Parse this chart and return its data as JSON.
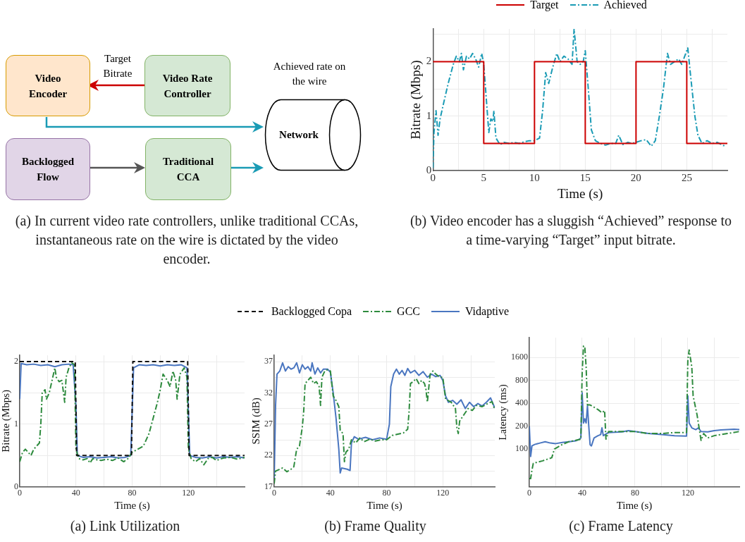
{
  "chart_data": [
    {
      "type": "other",
      "title": "(a) In current video rate controllers, unlike traditional CCAs, instantaneous rate on the wire is dictated by the video encoder.",
      "annotations": [
        "Video Encoder",
        "Video Rate Controller",
        "Backlogged Flow",
        "Traditional CCA",
        "Network",
        "Target Bitrate",
        "Achieved rate on the wire"
      ]
    },
    {
      "type": "line",
      "title": "(b) Video encoder has a sluggish “Achieved” response to a time-varying “Target” input bitrate.",
      "xlabel": "Time (s)",
      "ylabel": "Bitrate (Mbps)",
      "xlim": [
        0,
        29
      ],
      "ylim": [
        0,
        2.6
      ],
      "xticks": [
        0,
        {
          "value": 2.5,
          "label": null
        },
        5,
        {
          "value": 7.5,
          "label": null
        },
        10,
        {
          "value": 12.5,
          "label": null
        },
        15,
        {
          "value": 17.5,
          "label": null
        },
        20,
        {
          "value": 22.5,
          "label": null
        },
        25,
        {
          "value": 27.5,
          "label": null
        }
      ],
      "yticks": [
        0,
        {
          "value": 0.5,
          "label": null
        },
        1,
        {
          "value": 1.5,
          "label": null
        },
        2,
        {
          "value": 2.5,
          "label": null
        }
      ],
      "grid": true,
      "legend": "top",
      "series": [
        {
          "name": "Target",
          "color": "#cc0000",
          "line_style": "solid",
          "x": [
            0,
            5,
            5,
            10,
            10,
            15,
            15,
            20,
            20,
            25,
            25,
            29
          ],
          "values": [
            2,
            2,
            0.5,
            0.5,
            2,
            2,
            0.5,
            0.5,
            2,
            2,
            0.5,
            0.5
          ]
        },
        {
          "name": "Achieved",
          "color": "#1a9bb5",
          "line_style": "dashdot",
          "x": [
            0,
            0.1,
            0.3,
            0.5,
            0.7,
            1.0,
            1.5,
            2.0,
            2.3,
            2.6,
            2.8,
            3.0,
            3.3,
            3.6,
            3.9,
            4.2,
            4.5,
            4.8,
            5.0,
            5.3,
            5.5,
            5.7,
            5.9,
            6.0,
            6.2,
            6.6,
            7,
            7.5,
            8,
            8.5,
            9,
            9.5,
            10,
            10.5,
            10.8,
            11.1,
            11.4,
            11.8,
            12.2,
            12.5,
            12.9,
            13.3,
            13.7,
            13.9,
            14.2,
            14.5,
            14.8,
            15.0,
            15.3,
            15.6,
            16,
            16.5,
            17,
            17.5,
            18,
            18.3,
            18.7,
            19.2,
            19.6,
            20,
            20.5,
            21,
            21.5,
            21.9,
            22.3,
            22.7,
            23.1,
            23.4,
            23.8,
            24.2,
            24.5,
            24.9,
            25.1,
            25.4,
            25.8,
            26.1,
            26.5,
            27,
            27.5,
            28,
            28.5,
            28.8
          ],
          "values": [
            0.05,
            0.7,
            1.1,
            0.65,
            0.95,
            1.2,
            1.6,
            1.95,
            2.1,
            2.0,
            2.15,
            1.85,
            2.1,
            2.05,
            2.15,
            2.05,
            1.9,
            2.15,
            1.95,
            1.2,
            0.7,
            0.95,
            0.9,
            1.1,
            0.6,
            0.48,
            0.52,
            0.5,
            0.52,
            0.5,
            0.53,
            0.55,
            0.55,
            0.6,
            1.1,
            1.8,
            1.6,
            1.9,
            2.15,
            2.0,
            2.1,
            2.05,
            1.95,
            2.6,
            2.0,
            1.95,
            2.0,
            2.2,
            1.5,
            0.75,
            0.55,
            0.5,
            0.47,
            0.5,
            0.5,
            0.65,
            0.48,
            0.52,
            0.5,
            0.52,
            0.55,
            0.57,
            0.45,
            0.55,
            1.0,
            1.5,
            2.15,
            1.95,
            2.0,
            2.05,
            1.95,
            2.15,
            2.25,
            1.7,
            1.0,
            0.65,
            0.5,
            0.55,
            0.5,
            0.52,
            0.47,
            0.45
          ]
        }
      ]
    },
    {
      "type": "line",
      "title": "(a) Link Utilization",
      "xlabel": "Time (s)",
      "ylabel": "Bitrate (Mbps)",
      "xlim": [
        0,
        160
      ],
      "ylim": [
        0,
        2.1
      ],
      "xticks": [
        0,
        {
          "value": 20,
          "label": null
        },
        40,
        {
          "value": 60,
          "label": null
        },
        80,
        {
          "value": 100,
          "label": null
        },
        120,
        {
          "value": 140,
          "label": null
        }
      ],
      "yticks": [
        0,
        {
          "value": 0.5,
          "label": null
        },
        1,
        {
          "value": 1.5,
          "label": null
        },
        2
      ],
      "grid": true,
      "legend": "top",
      "series": [
        {
          "name": "Backlogged Copa",
          "color": "#111111",
          "line_style": "dashed",
          "x": [
            0,
            39.5,
            40.5,
            79.5,
            80.5,
            119.5,
            120.5,
            160
          ],
          "values": [
            2,
            2,
            0.5,
            0.5,
            2,
            2,
            0.5,
            0.5
          ]
        },
        {
          "name": "GCC",
          "color": "#2e8b3e",
          "line_style": "dashdot",
          "x": [
            0,
            2,
            4,
            6,
            8,
            10,
            12,
            14,
            15,
            16,
            18,
            19,
            21,
            23,
            25,
            26,
            28,
            30,
            32,
            33,
            35,
            37,
            39,
            40,
            42,
            45,
            48,
            50,
            52,
            55,
            58,
            62,
            66,
            70,
            74,
            77,
            80,
            84,
            88,
            92,
            95,
            98,
            100,
            102,
            105,
            107,
            109,
            111,
            112,
            114,
            117,
            119,
            120,
            122,
            125,
            128,
            131,
            134,
            137,
            140,
            145,
            150,
            155,
            160
          ],
          "values": [
            0.4,
            0.55,
            0.6,
            0.55,
            0.5,
            0.6,
            0.65,
            0.7,
            1.0,
            1.5,
            1.55,
            1.4,
            1.5,
            1.7,
            1.9,
            1.75,
            1.68,
            1.7,
            1.35,
            1.75,
            1.9,
            1.98,
            1.95,
            0.6,
            0.45,
            0.43,
            0.45,
            0.38,
            0.45,
            0.43,
            0.42,
            0.44,
            0.42,
            0.46,
            0.4,
            0.45,
            0.55,
            0.6,
            0.65,
            0.85,
            1.1,
            1.35,
            1.55,
            1.8,
            1.7,
            1.6,
            1.85,
            1.7,
            1.4,
            1.8,
            1.9,
            1.75,
            0.6,
            0.45,
            0.4,
            0.45,
            0.35,
            0.45,
            0.47,
            0.42,
            0.46,
            0.47,
            0.44,
            0.47
          ]
        },
        {
          "name": "Vidaptive",
          "color": "#4a76c0",
          "line_style": "solid",
          "x": [
            0,
            1,
            5,
            10,
            15,
            20,
            25,
            30,
            35,
            38,
            40,
            41,
            45,
            50,
            55,
            60,
            65,
            70,
            75,
            79,
            80,
            81,
            85,
            90,
            95,
            100,
            105,
            110,
            115,
            119,
            120,
            121,
            125,
            130,
            135,
            140,
            145,
            150,
            155,
            160
          ],
          "values": [
            1.4,
            1.97,
            1.95,
            1.96,
            1.94,
            1.95,
            1.92,
            1.95,
            1.96,
            1.95,
            1.3,
            0.5,
            0.47,
            0.48,
            0.46,
            0.47,
            0.48,
            0.46,
            0.47,
            0.5,
            1.2,
            1.9,
            1.95,
            1.94,
            1.95,
            1.93,
            1.95,
            1.94,
            1.95,
            1.9,
            1.2,
            0.5,
            0.47,
            0.46,
            0.48,
            0.46,
            0.48,
            0.47,
            0.48,
            0.46
          ]
        }
      ]
    },
    {
      "type": "line",
      "title": "(b) Frame Quality",
      "xlabel": "Time (s)",
      "ylabel": "SSIM (dB)",
      "xlim": [
        0,
        157
      ],
      "ylim": [
        17,
        38
      ],
      "xticks": [
        0,
        {
          "value": 20,
          "label": null
        },
        40,
        {
          "value": 60,
          "label": null
        },
        80,
        {
          "value": 100,
          "label": null
        },
        120,
        {
          "value": 140,
          "label": null
        }
      ],
      "yticks": [
        17,
        {
          "value": 19.5,
          "label": null
        },
        22,
        {
          "value": 24.5,
          "label": null
        },
        27,
        {
          "value": 29.5,
          "label": null
        },
        32,
        {
          "value": 34.5,
          "label": null
        },
        37
      ],
      "grid": true,
      "series": [
        {
          "color": "#2e8b3e",
          "line_style": "dashdot",
          "x": [
            0,
            1,
            3,
            6,
            9,
            12,
            14,
            16,
            18,
            20,
            21,
            22,
            24,
            26,
            28,
            30,
            32,
            33,
            34,
            36,
            38,
            40,
            42,
            44,
            46,
            47,
            49,
            50,
            51,
            53,
            55,
            58,
            61,
            64,
            68,
            72,
            76,
            80,
            84,
            88,
            92,
            95,
            96,
            97,
            99,
            101,
            103,
            105,
            107,
            108,
            109,
            111,
            113,
            115,
            118,
            120,
            122,
            126,
            129,
            130,
            131,
            132,
            135,
            138,
            141,
            144,
            148,
            152,
            155,
            157
          ],
          "values": [
            17.5,
            19.5,
            19.7,
            20,
            19.4,
            19.8,
            20.2,
            23,
            23.5,
            26.5,
            29,
            33.5,
            34,
            34.5,
            33.5,
            33.8,
            33,
            30,
            34.5,
            35.5,
            35.7,
            35.5,
            31.5,
            30.8,
            29.8,
            26,
            25.5,
            21,
            22.5,
            23,
            24.5,
            24,
            24.8,
            24.2,
            24.6,
            24.3,
            24.5,
            24.5,
            25.2,
            25.4,
            25.6,
            26.2,
            29,
            33.5,
            33.8,
            34.3,
            33.5,
            34,
            33.5,
            32.6,
            30.5,
            35,
            35.5,
            35,
            34.5,
            34.5,
            31,
            30.5,
            29.5,
            26.5,
            25.5,
            27.5,
            28.5,
            29.5,
            29.2,
            30,
            29.8,
            30.3,
            30.6,
            29.3
          ]
        },
        {
          "color": "#4a76c0",
          "line_style": "solid",
          "x": [
            0,
            1,
            2,
            4,
            6,
            8,
            10,
            12,
            14,
            16,
            18,
            20,
            22,
            24,
            26,
            27,
            29,
            31,
            33,
            35,
            38,
            40,
            42,
            44,
            46,
            47,
            48,
            52,
            54,
            55,
            57,
            60,
            65,
            70,
            75,
            80,
            82,
            83,
            85,
            87,
            89,
            91,
            93,
            95,
            97,
            100,
            103,
            106,
            109,
            112,
            115,
            118,
            120,
            122,
            124,
            127,
            130,
            133,
            136,
            139,
            142,
            145,
            148,
            151,
            154,
            157
          ],
          "values": [
            18,
            30,
            35,
            35.5,
            36.8,
            35.5,
            36.2,
            35.8,
            36,
            36.8,
            35.2,
            36.5,
            35.8,
            36.2,
            35.5,
            36.8,
            35,
            36,
            35.2,
            35.8,
            35.8,
            35.3,
            32,
            28,
            23,
            19.2,
            20,
            19.8,
            19.6,
            24,
            25,
            24.6,
            24.9,
            24.5,
            24.8,
            24.6,
            27,
            33,
            35,
            35.8,
            35,
            35.6,
            34.8,
            35.9,
            35.2,
            35.6,
            34.8,
            35.4,
            34.5,
            35,
            34.6,
            34.8,
            34,
            31.5,
            30.5,
            30.8,
            30.2,
            30.9,
            29.5,
            30.5,
            29.8,
            30.3,
            29.9,
            30.5,
            31.2,
            29.6
          ]
        }
      ]
    },
    {
      "type": "line",
      "title": "(c) Frame Latency",
      "xlabel": "Time (s)",
      "ylabel": "Latency (ms)",
      "xlim": [
        0,
        159
      ],
      "ylim": [
        32,
        2900
      ],
      "log": "y",
      "xticks": [
        0,
        {
          "value": 20,
          "label": null
        },
        40,
        {
          "value": 60,
          "label": null
        },
        80,
        {
          "value": 100,
          "label": null
        },
        120,
        {
          "value": 140,
          "label": null
        }
      ],
      "yticks": [
        100,
        200,
        400,
        800,
        1600
      ],
      "grid": true,
      "series": [
        {
          "color": "#2e8b3e",
          "line_style": "dashdot",
          "x": [
            0,
            1,
            2,
            3,
            10,
            17,
            19,
            25,
            30,
            35,
            39,
            40,
            41,
            42,
            43,
            44,
            46,
            52,
            55,
            57,
            58,
            60,
            70,
            80,
            90,
            100,
            110,
            119,
            120,
            121,
            123,
            124,
            127,
            130,
            132,
            135,
            140,
            150,
            159
          ],
          "values": [
            41,
            41,
            53,
            65,
            70,
            77,
            100,
            115,
            125,
            130,
            135,
            1000,
            2260,
            2200,
            1200,
            380,
            380,
            330,
            300,
            320,
            135,
            170,
            170,
            170,
            160,
            160,
            165,
            165,
            1500,
            2000,
            1200,
            500,
            280,
            130,
            160,
            140,
            150,
            160,
            170
          ]
        },
        {
          "color": "#4a76c0",
          "line_style": "solid",
          "x": [
            0,
            1,
            2,
            4,
            8,
            12,
            16,
            20,
            25,
            30,
            35,
            38,
            39,
            40,
            41,
            42,
            43,
            44,
            45,
            46,
            47,
            49,
            52,
            54,
            55,
            56,
            60,
            70,
            75,
            80,
            90,
            100,
            110,
            119,
            120,
            121,
            123,
            126,
            128,
            130,
            135,
            140,
            145,
            150,
            155,
            159
          ],
          "values": [
            200,
            80,
            110,
            115,
            120,
            125,
            120,
            118,
            122,
            125,
            128,
            135,
            140,
            550,
            220,
            250,
            220,
            370,
            200,
            114,
            110,
            140,
            150,
            155,
            190,
            150,
            165,
            168,
            175,
            170,
            160,
            155,
            150,
            148,
            500,
            220,
            190,
            180,
            190,
            170,
            168,
            175,
            178,
            180,
            182,
            180
          ]
        }
      ]
    }
  ]
}
